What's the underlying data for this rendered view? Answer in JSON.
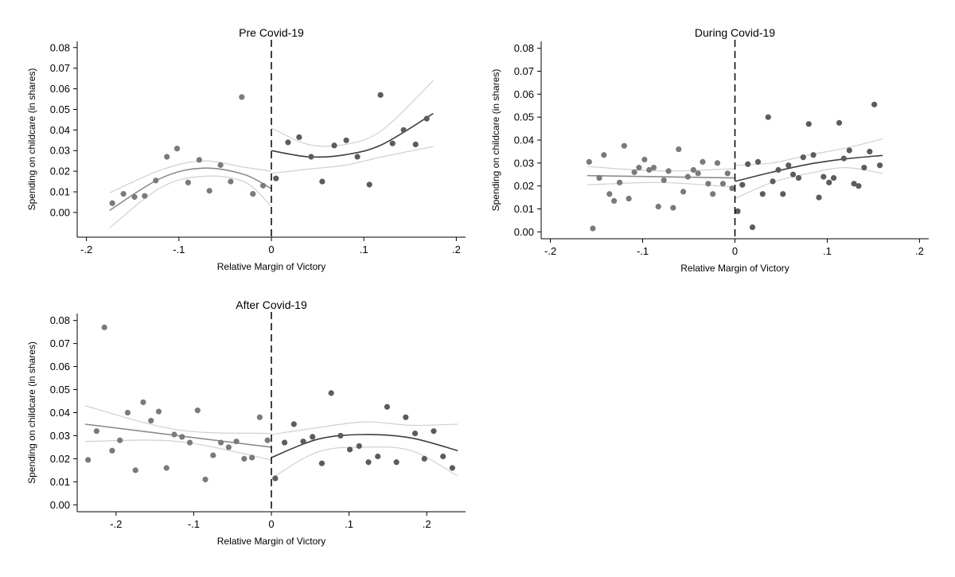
{
  "chart_data": [
    {
      "type": "scatter",
      "title": "Pre Covid-19",
      "xlabel": "Relative Margin of Victory",
      "ylabel": "Spending on childcare (in shares)",
      "xlim": [
        -0.21,
        0.21
      ],
      "ylim": [
        -0.012,
        0.083
      ],
      "xticks": [
        -0.2,
        -0.1,
        0,
        0.1,
        0.2
      ],
      "xtick_labels": [
        "-.2",
        "-.1",
        "0",
        ".1",
        ".2"
      ],
      "yticks": [
        0,
        0.01,
        0.02,
        0.03,
        0.04,
        0.05,
        0.06,
        0.07,
        0.08
      ],
      "ytick_labels": [
        "0.00",
        "0.01",
        "0.02",
        "0.03",
        "0.04",
        "0.05",
        "0.06",
        "0.07",
        "0.08"
      ],
      "cutoff": 0,
      "points": [
        {
          "x": -0.172,
          "y": 0.0045
        },
        {
          "x": -0.16,
          "y": 0.009
        },
        {
          "x": -0.148,
          "y": 0.0075
        },
        {
          "x": -0.137,
          "y": 0.008
        },
        {
          "x": -0.125,
          "y": 0.0155
        },
        {
          "x": -0.113,
          "y": 0.027
        },
        {
          "x": -0.102,
          "y": 0.031
        },
        {
          "x": -0.09,
          "y": 0.0145
        },
        {
          "x": -0.078,
          "y": 0.0255
        },
        {
          "x": -0.067,
          "y": 0.0105
        },
        {
          "x": -0.055,
          "y": 0.023
        },
        {
          "x": -0.044,
          "y": 0.015
        },
        {
          "x": -0.032,
          "y": 0.056
        },
        {
          "x": -0.02,
          "y": 0.009
        },
        {
          "x": -0.009,
          "y": 0.013
        },
        {
          "x": 0.005,
          "y": 0.0165
        },
        {
          "x": 0.018,
          "y": 0.034
        },
        {
          "x": 0.03,
          "y": 0.0365
        },
        {
          "x": 0.043,
          "y": 0.027
        },
        {
          "x": 0.055,
          "y": 0.015
        },
        {
          "x": 0.068,
          "y": 0.0325
        },
        {
          "x": 0.081,
          "y": 0.035
        },
        {
          "x": 0.093,
          "y": 0.027
        },
        {
          "x": 0.106,
          "y": 0.0135
        },
        {
          "x": 0.118,
          "y": 0.057
        },
        {
          "x": 0.131,
          "y": 0.0335
        },
        {
          "x": 0.143,
          "y": 0.04
        },
        {
          "x": 0.156,
          "y": 0.033
        },
        {
          "x": 0.168,
          "y": 0.0455
        }
      ],
      "fit_left": {
        "x": [
          -0.175,
          -0.12,
          -0.075,
          -0.03,
          0
        ],
        "y": [
          0.001,
          0.0165,
          0.0215,
          0.0185,
          0.0115
        ]
      },
      "ci_left_upper": {
        "x": [
          -0.175,
          -0.12,
          -0.075,
          -0.03,
          0
        ],
        "y": [
          0.0095,
          0.0205,
          0.025,
          0.022,
          0.02
        ]
      },
      "ci_left_lower": {
        "x": [
          -0.175,
          -0.12,
          -0.075,
          -0.03,
          0
        ],
        "y": [
          -0.0075,
          0.012,
          0.0175,
          0.015,
          0.003
        ]
      },
      "fit_right": {
        "x": [
          0,
          0.04,
          0.08,
          0.12,
          0.175
        ],
        "y": [
          0.03,
          0.027,
          0.028,
          0.033,
          0.048
        ]
      },
      "ci_right_upper": {
        "x": [
          0,
          0.04,
          0.08,
          0.12,
          0.175
        ],
        "y": [
          0.041,
          0.033,
          0.033,
          0.04,
          0.064
        ]
      },
      "ci_right_lower": {
        "x": [
          0,
          0.04,
          0.08,
          0.12,
          0.175
        ],
        "y": [
          0.019,
          0.021,
          0.023,
          0.027,
          0.032
        ]
      }
    },
    {
      "type": "scatter",
      "title": "During Covid-19",
      "xlabel": "Relative Margin of Victory",
      "ylabel": "Spending on childcare (in shares)",
      "xlim": [
        -0.21,
        0.21
      ],
      "ylim": [
        -0.003,
        0.083
      ],
      "xticks": [
        -0.2,
        -0.1,
        0,
        0.1,
        0.2
      ],
      "xtick_labels": [
        "-.2",
        "-.1",
        "0",
        ".1",
        ".2"
      ],
      "yticks": [
        0,
        0.01,
        0.02,
        0.03,
        0.04,
        0.05,
        0.06,
        0.07,
        0.08
      ],
      "ytick_labels": [
        "0.00",
        "0.01",
        "0.02",
        "0.03",
        "0.04",
        "0.05",
        "0.06",
        "0.07",
        "0.08"
      ],
      "cutoff": 0,
      "points": [
        {
          "x": -0.158,
          "y": 0.0305
        },
        {
          "x": -0.154,
          "y": 0.0015
        },
        {
          "x": -0.147,
          "y": 0.0235
        },
        {
          "x": -0.142,
          "y": 0.0335
        },
        {
          "x": -0.136,
          "y": 0.0165
        },
        {
          "x": -0.131,
          "y": 0.0135
        },
        {
          "x": -0.125,
          "y": 0.0215
        },
        {
          "x": -0.12,
          "y": 0.0375
        },
        {
          "x": -0.115,
          "y": 0.0145
        },
        {
          "x": -0.109,
          "y": 0.026
        },
        {
          "x": -0.104,
          "y": 0.028
        },
        {
          "x": -0.098,
          "y": 0.0315
        },
        {
          "x": -0.093,
          "y": 0.027
        },
        {
          "x": -0.088,
          "y": 0.028
        },
        {
          "x": -0.083,
          "y": 0.011
        },
        {
          "x": -0.077,
          "y": 0.0225
        },
        {
          "x": -0.072,
          "y": 0.0265
        },
        {
          "x": -0.067,
          "y": 0.0105
        },
        {
          "x": -0.061,
          "y": 0.036
        },
        {
          "x": -0.056,
          "y": 0.0175
        },
        {
          "x": -0.051,
          "y": 0.024
        },
        {
          "x": -0.045,
          "y": 0.027
        },
        {
          "x": -0.04,
          "y": 0.0255
        },
        {
          "x": -0.035,
          "y": 0.0305
        },
        {
          "x": -0.029,
          "y": 0.021
        },
        {
          "x": -0.024,
          "y": 0.0165
        },
        {
          "x": -0.019,
          "y": 0.03
        },
        {
          "x": -0.013,
          "y": 0.021
        },
        {
          "x": -0.008,
          "y": 0.0255
        },
        {
          "x": -0.003,
          "y": 0.019
        },
        {
          "x": 0.003,
          "y": 0.009
        },
        {
          "x": 0.008,
          "y": 0.0205
        },
        {
          "x": 0.014,
          "y": 0.0295
        },
        {
          "x": 0.019,
          "y": 0.002
        },
        {
          "x": 0.025,
          "y": 0.0305
        },
        {
          "x": 0.03,
          "y": 0.0165
        },
        {
          "x": 0.036,
          "y": 0.05
        },
        {
          "x": 0.041,
          "y": 0.022
        },
        {
          "x": 0.047,
          "y": 0.027
        },
        {
          "x": 0.052,
          "y": 0.0165
        },
        {
          "x": 0.058,
          "y": 0.029
        },
        {
          "x": 0.063,
          "y": 0.025
        },
        {
          "x": 0.069,
          "y": 0.0235
        },
        {
          "x": 0.074,
          "y": 0.0325
        },
        {
          "x": 0.08,
          "y": 0.047
        },
        {
          "x": 0.085,
          "y": 0.0335
        },
        {
          "x": 0.091,
          "y": 0.015
        },
        {
          "x": 0.096,
          "y": 0.024
        },
        {
          "x": 0.102,
          "y": 0.0215
        },
        {
          "x": 0.107,
          "y": 0.0235
        },
        {
          "x": 0.113,
          "y": 0.0475
        },
        {
          "x": 0.118,
          "y": 0.032
        },
        {
          "x": 0.124,
          "y": 0.0355
        },
        {
          "x": 0.129,
          "y": 0.021
        },
        {
          "x": 0.134,
          "y": 0.02
        },
        {
          "x": 0.14,
          "y": 0.028
        },
        {
          "x": 0.146,
          "y": 0.035
        },
        {
          "x": 0.151,
          "y": 0.0555
        },
        {
          "x": 0.157,
          "y": 0.029
        }
      ],
      "fit_left": {
        "x": [
          -0.16,
          -0.08,
          0
        ],
        "y": [
          0.0245,
          0.024,
          0.0235
        ]
      },
      "ci_left_upper": {
        "x": [
          -0.16,
          -0.08,
          0
        ],
        "y": [
          0.0285,
          0.0265,
          0.0275
        ]
      },
      "ci_left_lower": {
        "x": [
          -0.16,
          -0.08,
          0
        ],
        "y": [
          0.0205,
          0.0215,
          0.0195
        ]
      },
      "fit_right": {
        "x": [
          0,
          0.04,
          0.08,
          0.12,
          0.16
        ],
        "y": [
          0.022,
          0.026,
          0.0295,
          0.0318,
          0.0333
        ]
      },
      "ci_right_upper": {
        "x": [
          0,
          0.04,
          0.08,
          0.12,
          0.16
        ],
        "y": [
          0.029,
          0.03,
          0.0335,
          0.0365,
          0.0405
        ]
      },
      "ci_right_lower": {
        "x": [
          0,
          0.04,
          0.08,
          0.12,
          0.16
        ],
        "y": [
          0.0145,
          0.0215,
          0.0255,
          0.028,
          0.0255
        ]
      }
    },
    {
      "type": "scatter",
      "title": "After Covid-19",
      "xlabel": "Relative Margin of Victory",
      "ylabel": "Spending on childcare (in shares)",
      "xlim": [
        -0.25,
        0.25
      ],
      "ylim": [
        -0.003,
        0.083
      ],
      "xticks": [
        -0.2,
        -0.1,
        0,
        0.1,
        0.2
      ],
      "xtick_labels": [
        "-.2",
        "-.1",
        "0",
        ".1",
        ".2"
      ],
      "yticks": [
        0,
        0.01,
        0.02,
        0.03,
        0.04,
        0.05,
        0.06,
        0.07,
        0.08
      ],
      "ytick_labels": [
        "0.00",
        "0.01",
        "0.02",
        "0.03",
        "0.04",
        "0.05",
        "0.06",
        "0.07",
        "0.08"
      ],
      "cutoff": 0,
      "points": [
        {
          "x": -0.236,
          "y": 0.0195
        },
        {
          "x": -0.225,
          "y": 0.032
        },
        {
          "x": -0.215,
          "y": 0.077
        },
        {
          "x": -0.205,
          "y": 0.0235
        },
        {
          "x": -0.195,
          "y": 0.028
        },
        {
          "x": -0.185,
          "y": 0.04
        },
        {
          "x": -0.175,
          "y": 0.015
        },
        {
          "x": -0.165,
          "y": 0.0445
        },
        {
          "x": -0.155,
          "y": 0.0365
        },
        {
          "x": -0.145,
          "y": 0.0405
        },
        {
          "x": -0.135,
          "y": 0.016
        },
        {
          "x": -0.125,
          "y": 0.0305
        },
        {
          "x": -0.115,
          "y": 0.0295
        },
        {
          "x": -0.105,
          "y": 0.027
        },
        {
          "x": -0.095,
          "y": 0.041
        },
        {
          "x": -0.085,
          "y": 0.011
        },
        {
          "x": -0.075,
          "y": 0.0215
        },
        {
          "x": -0.065,
          "y": 0.027
        },
        {
          "x": -0.055,
          "y": 0.025
        },
        {
          "x": -0.045,
          "y": 0.0275
        },
        {
          "x": -0.035,
          "y": 0.02
        },
        {
          "x": -0.025,
          "y": 0.0205
        },
        {
          "x": -0.015,
          "y": 0.038
        },
        {
          "x": -0.005,
          "y": 0.028
        },
        {
          "x": 0.005,
          "y": 0.0115
        },
        {
          "x": 0.017,
          "y": 0.027
        },
        {
          "x": 0.029,
          "y": 0.035
        },
        {
          "x": 0.041,
          "y": 0.0275
        },
        {
          "x": 0.053,
          "y": 0.0295
        },
        {
          "x": 0.065,
          "y": 0.018
        },
        {
          "x": 0.077,
          "y": 0.0485
        },
        {
          "x": 0.089,
          "y": 0.03
        },
        {
          "x": 0.101,
          "y": 0.024
        },
        {
          "x": 0.113,
          "y": 0.0255
        },
        {
          "x": 0.125,
          "y": 0.0185
        },
        {
          "x": 0.137,
          "y": 0.021
        },
        {
          "x": 0.149,
          "y": 0.0425
        },
        {
          "x": 0.161,
          "y": 0.0185
        },
        {
          "x": 0.173,
          "y": 0.038
        },
        {
          "x": 0.185,
          "y": 0.031
        },
        {
          "x": 0.197,
          "y": 0.02
        },
        {
          "x": 0.209,
          "y": 0.032
        },
        {
          "x": 0.221,
          "y": 0.021
        },
        {
          "x": 0.233,
          "y": 0.016
        }
      ],
      "fit_left": {
        "x": [
          -0.24,
          0
        ],
        "y": [
          0.035,
          0.025
        ]
      },
      "ci_left_upper": {
        "x": [
          -0.24,
          -0.12,
          0
        ],
        "y": [
          0.043,
          0.0325,
          0.031
        ]
      },
      "ci_left_lower": {
        "x": [
          -0.24,
          -0.12,
          0
        ],
        "y": [
          0.0275,
          0.0275,
          0.0195
        ]
      },
      "fit_right": {
        "x": [
          0,
          0.06,
          0.12,
          0.18,
          0.24
        ],
        "y": [
          0.0205,
          0.0285,
          0.0305,
          0.029,
          0.0235
        ]
      },
      "ci_right_upper": {
        "x": [
          0,
          0.06,
          0.12,
          0.18,
          0.24
        ],
        "y": [
          0.0305,
          0.0335,
          0.036,
          0.0345,
          0.035
        ]
      },
      "ci_right_lower": {
        "x": [
          0,
          0.06,
          0.12,
          0.18,
          0.24
        ],
        "y": [
          0.0115,
          0.023,
          0.025,
          0.0235,
          0.0125
        ]
      }
    }
  ]
}
